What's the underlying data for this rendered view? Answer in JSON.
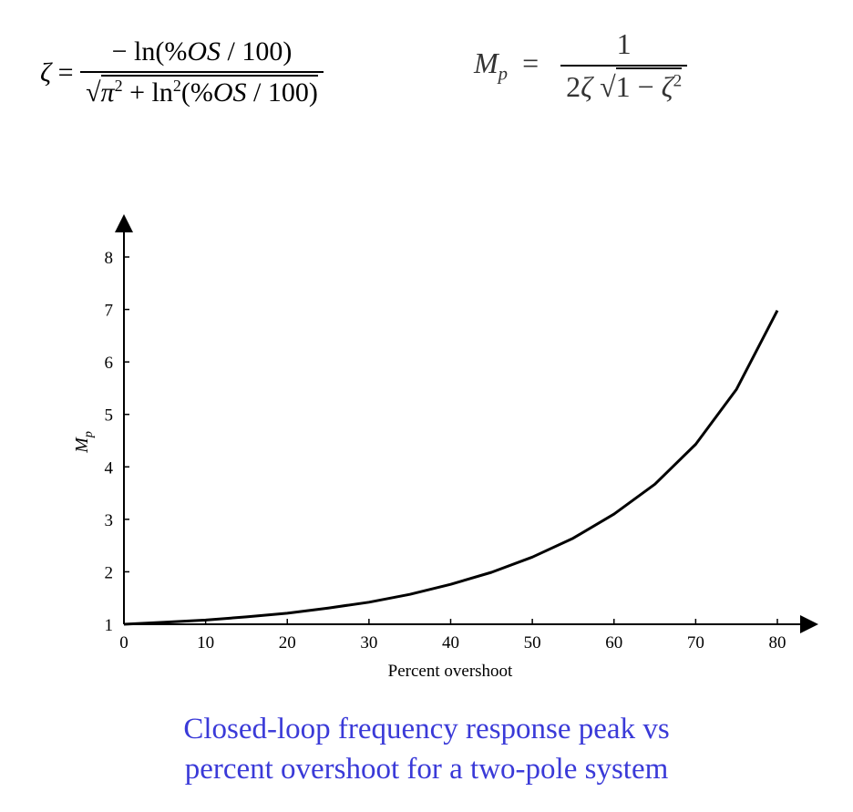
{
  "formulas": {
    "zeta": {
      "lhs": "ζ =",
      "numerator": "− ln(%OS / 100)",
      "denominator": "√π² + ln²(%OS / 100)"
    },
    "mp": {
      "lhs": "Mp =",
      "numerator": "1",
      "denominator": "2ζ √1 − ζ²"
    }
  },
  "caption": {
    "line1": "Closed-loop frequency response peak vs",
    "line2": "percent overshoot for a two-pole system"
  },
  "chart_data": {
    "type": "line",
    "xlabel": "Percent overshoot",
    "ylabel": "Mp",
    "xlim": [
      0,
      80
    ],
    "ylim": [
      1,
      8
    ],
    "xticks": [
      0,
      10,
      20,
      30,
      40,
      50,
      60,
      70,
      80
    ],
    "yticks": [
      1,
      2,
      3,
      4,
      5,
      6,
      7,
      8
    ],
    "grid": false,
    "series": [
      {
        "x": [
          0,
          5,
          10,
          15,
          20,
          25,
          30,
          35,
          40,
          45,
          50,
          55,
          60,
          65,
          70,
          75,
          80
        ],
        "values": [
          1.0,
          1.04,
          1.08,
          1.14,
          1.21,
          1.31,
          1.42,
          1.57,
          1.76,
          1.99,
          2.28,
          2.64,
          3.1,
          3.67,
          4.43,
          5.48,
          6.98
        ]
      }
    ],
    "colors": {
      "line": "#000000",
      "axes": "#000000"
    }
  }
}
